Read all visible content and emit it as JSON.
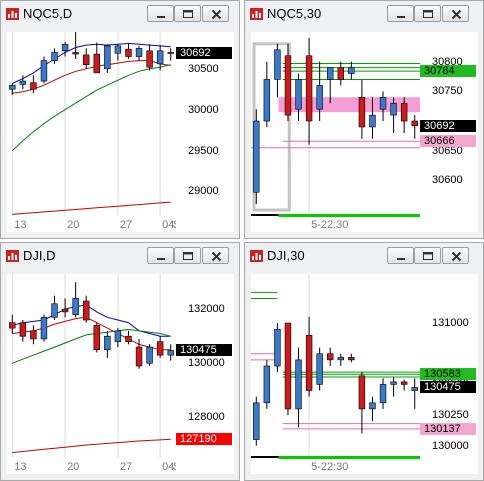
{
  "windows": [
    {
      "id": "nqc5-d",
      "title": "NQC5,D",
      "y_labels": [
        {
          "text": "30500",
          "value": 30500
        },
        {
          "text": "30000",
          "value": 30000
        },
        {
          "text": "29500",
          "value": 29500
        },
        {
          "text": "29000",
          "value": 29000
        }
      ],
      "price_boxes": [
        {
          "text": "30692",
          "value": 30692,
          "bg": "#000000",
          "fg": "#ffffff"
        }
      ],
      "x_labels": [
        {
          "text": "13",
          "bar": 0.5
        },
        {
          "text": "20",
          "bar": 5.5
        },
        {
          "text": "27",
          "bar": 10.5
        },
        {
          "text": "04",
          "bar": 14.5
        },
        {
          "text": "Sep",
          "bar": 15.5
        }
      ],
      "chart_data": {
        "type": "candlestick",
        "ylim": [
          28700,
          30950
        ],
        "bars": [
          {
            "o": 30250,
            "h": 30320,
            "l": 30180,
            "c": 30300
          },
          {
            "o": 30310,
            "h": 30420,
            "l": 30250,
            "c": 30350
          },
          {
            "o": 30330,
            "h": 30420,
            "l": 30200,
            "c": 30250
          },
          {
            "o": 30350,
            "h": 30650,
            "l": 30320,
            "c": 30600
          },
          {
            "o": 30600,
            "h": 30750,
            "l": 30560,
            "c": 30700
          },
          {
            "o": 30720,
            "h": 30830,
            "l": 30650,
            "c": 30800
          },
          {
            "o": 30700,
            "h": 30950,
            "l": 30620,
            "c": 30680
          },
          {
            "o": 30670,
            "h": 30750,
            "l": 30500,
            "c": 30550
          },
          {
            "o": 30680,
            "h": 30820,
            "l": 30450,
            "c": 30450
          },
          {
            "o": 30500,
            "h": 30800,
            "l": 30450,
            "c": 30780
          },
          {
            "o": 30690,
            "h": 30800,
            "l": 30600,
            "c": 30780
          },
          {
            "o": 30740,
            "h": 30810,
            "l": 30620,
            "c": 30650
          },
          {
            "o": 30650,
            "h": 30780,
            "l": 30600,
            "c": 30750
          },
          {
            "o": 30720,
            "h": 30800,
            "l": 30480,
            "c": 30520
          },
          {
            "o": 30560,
            "h": 30790,
            "l": 30480,
            "c": 30720
          },
          {
            "o": 30700,
            "h": 30750,
            "l": 30600,
            "c": 30692
          }
        ],
        "overlays": [
          {
            "color": "#0000cc",
            "points": [
              30320,
              30380,
              30450,
              30540,
              30620,
              30700,
              30760,
              30790,
              30800,
              30790,
              30800,
              30810,
              30800,
              30790,
              30780,
              30770
            ]
          },
          {
            "color": "#cc0000",
            "points": [
              30200,
              30220,
              30250,
              30300,
              30360,
              30420,
              30470,
              30500,
              30530,
              30550,
              30570,
              30590,
              30600,
              30600,
              30560,
              30540
            ]
          },
          {
            "color": "#008000",
            "points": [
              29500,
              29620,
              29730,
              29830,
              29920,
              30000,
              30080,
              30160,
              30240,
              30300,
              30360,
              30420,
              30470,
              30500,
              30520,
              30550
            ]
          },
          {
            "color": "#cc0000",
            "points": [
              28720,
              28730,
              28740,
              28750,
              28760,
              28770,
              28780,
              28790,
              28800,
              28810,
              28820,
              28830,
              28840,
              28850,
              28860,
              28870
            ]
          }
        ]
      }
    },
    {
      "id": "nqc5-30",
      "title": "NQC5,30",
      "y_labels": [
        {
          "text": "30800",
          "value": 30800
        },
        {
          "text": "30750",
          "value": 30750
        },
        {
          "text": "30650",
          "value": 30650
        },
        {
          "text": "30600",
          "value": 30600
        }
      ],
      "price_boxes": [
        {
          "text": "30784",
          "value": 30784,
          "bg": "#22bb22",
          "fg": "#000000"
        },
        {
          "text": "30692",
          "value": 30692,
          "bg": "#000000",
          "fg": "#ffffff"
        },
        {
          "text": "30666",
          "value": 30666,
          "bg": "#f4a6cf",
          "fg": "#000000"
        }
      ],
      "x_labels": [
        {
          "text": "5-22:30",
          "bar": 5.5
        }
      ],
      "chart_data": {
        "type": "candlestick",
        "ylim": [
          30540,
          30850
        ],
        "bars": [
          {
            "o": 30580,
            "h": 30720,
            "l": 30560,
            "c": 30700
          },
          {
            "o": 30700,
            "h": 30800,
            "l": 30690,
            "c": 30770
          },
          {
            "o": 30770,
            "h": 30830,
            "l": 30740,
            "c": 30820
          },
          {
            "o": 30810,
            "h": 30830,
            "l": 30700,
            "c": 30710
          },
          {
            "o": 30720,
            "h": 30780,
            "l": 30700,
            "c": 30770
          },
          {
            "o": 30810,
            "h": 30840,
            "l": 30660,
            "c": 30700
          },
          {
            "o": 30720,
            "h": 30800,
            "l": 30700,
            "c": 30760
          },
          {
            "o": 30770,
            "h": 30790,
            "l": 30730,
            "c": 30790
          },
          {
            "o": 30790,
            "h": 30800,
            "l": 30760,
            "c": 30770
          },
          {
            "o": 30780,
            "h": 30800,
            "l": 30770,
            "c": 30790
          },
          {
            "o": 30740,
            "h": 30770,
            "l": 30670,
            "c": 30690
          },
          {
            "o": 30690,
            "h": 30740,
            "l": 30670,
            "c": 30710
          },
          {
            "o": 30720,
            "h": 30750,
            "l": 30700,
            "c": 30740
          },
          {
            "o": 30710,
            "h": 30740,
            "l": 30680,
            "c": 30730
          },
          {
            "o": 30730,
            "h": 30740,
            "l": 30680,
            "c": 30700
          },
          {
            "o": 30700,
            "h": 30710,
            "l": 30670,
            "c": 30692
          }
        ],
        "hlines": [
          {
            "value": 30797,
            "color": "#00a000",
            "from": 3
          },
          {
            "value": 30790,
            "color": "#00a000",
            "from": 3
          },
          {
            "value": 30784,
            "color": "#00a000",
            "from": 3
          },
          {
            "value": 30770,
            "color": "#00a000",
            "from": 3
          },
          {
            "value": 30666,
            "color": "#e868b0",
            "from": 3
          },
          {
            "value": 30655,
            "color": "#e868b0",
            "from": 0
          }
        ],
        "highlight_band": {
          "from": 30720,
          "to": 30735,
          "color": "#f07cc8"
        }
      }
    },
    {
      "id": "dji-d",
      "title": "DJI,D",
      "y_labels": [
        {
          "text": "132000",
          "value": 132000
        },
        {
          "text": "130000",
          "value": 130000
        },
        {
          "text": "128000",
          "value": 128000
        }
      ],
      "price_boxes": [
        {
          "text": "130475",
          "value": 130475,
          "bg": "#000000",
          "fg": "#ffffff"
        },
        {
          "text": "127190",
          "value": 127190,
          "bg": "#ff0000",
          "fg": "#ffffff"
        }
      ],
      "x_labels": [
        {
          "text": "13",
          "bar": 0.5
        },
        {
          "text": "20",
          "bar": 5.5
        },
        {
          "text": "27",
          "bar": 10.5
        },
        {
          "text": "04",
          "bar": 14.5
        },
        {
          "text": "Sep",
          "bar": 15.5
        }
      ],
      "chart_data": {
        "type": "candlestick",
        "ylim": [
          126500,
          133300
        ],
        "bars": [
          {
            "o": 131500,
            "h": 131800,
            "l": 131100,
            "c": 131300
          },
          {
            "o": 131500,
            "h": 131600,
            "l": 130800,
            "c": 131000
          },
          {
            "o": 131200,
            "h": 131400,
            "l": 130700,
            "c": 130900
          },
          {
            "o": 130900,
            "h": 131800,
            "l": 130800,
            "c": 131700
          },
          {
            "o": 131700,
            "h": 132500,
            "l": 131600,
            "c": 132200
          },
          {
            "o": 132000,
            "h": 132400,
            "l": 131700,
            "c": 131900
          },
          {
            "o": 131800,
            "h": 133000,
            "l": 131700,
            "c": 132400
          },
          {
            "o": 132300,
            "h": 132500,
            "l": 131500,
            "c": 131600
          },
          {
            "o": 131400,
            "h": 131500,
            "l": 130400,
            "c": 130500
          },
          {
            "o": 130500,
            "h": 131200,
            "l": 130200,
            "c": 131000
          },
          {
            "o": 130800,
            "h": 131300,
            "l": 130600,
            "c": 131200
          },
          {
            "o": 131000,
            "h": 131200,
            "l": 130700,
            "c": 130800
          },
          {
            "o": 130600,
            "h": 130900,
            "l": 129800,
            "c": 129900
          },
          {
            "o": 130000,
            "h": 130700,
            "l": 129900,
            "c": 130600
          },
          {
            "o": 130800,
            "h": 131000,
            "l": 130200,
            "c": 130300
          },
          {
            "o": 130300,
            "h": 130700,
            "l": 130100,
            "c": 130475
          }
        ],
        "overlays": [
          {
            "color": "#0000cc",
            "points": [
              131400,
              131500,
              131550,
              131600,
              131800,
              132000,
              132100,
              132150,
              131900,
              131700,
              131600,
              131500,
              131200,
              131100,
              131000,
              131000
            ]
          },
          {
            "color": "#cc0000",
            "points": [
              131100,
              131150,
              131200,
              131300,
              131450,
              131550,
              131650,
              131700,
              131500,
              131300,
              131100,
              130900,
              130700,
              130600,
              130500,
              130500
            ]
          },
          {
            "color": "#008000",
            "points": [
              130000,
              130150,
              130300,
              130450,
              130600,
              130750,
              130900,
              131050,
              131100,
              131150,
              131200,
              131250,
              131200,
              131150,
              131100,
              131000
            ]
          },
          {
            "color": "#cc0000",
            "points": [
              126700,
              126740,
              126780,
              126820,
              126860,
              126900,
              126940,
              126980,
              127010,
              127040,
              127070,
              127100,
              127130,
              127150,
              127170,
              127190
            ]
          }
        ]
      }
    },
    {
      "id": "dji-30",
      "title": "DJI,30",
      "y_labels": [
        {
          "text": "131000",
          "value": 131000
        },
        {
          "text": "130500",
          "value": 130500
        },
        {
          "text": "130250",
          "value": 130250
        },
        {
          "text": "130000",
          "value": 130000
        }
      ],
      "price_boxes": [
        {
          "text": "130583",
          "value": 130583,
          "bg": "#22bb22",
          "fg": "#000000"
        },
        {
          "text": "130475",
          "value": 130475,
          "bg": "#000000",
          "fg": "#ffffff"
        },
        {
          "text": "130137",
          "value": 130137,
          "bg": "#f4a6cf",
          "fg": "#000000"
        }
      ],
      "x_labels": [
        {
          "text": "5-22:30",
          "bar": 5.5
        }
      ],
      "chart_data": {
        "type": "candlestick",
        "ylim": [
          129900,
          131400
        ],
        "bars": [
          {
            "o": 130050,
            "h": 130400,
            "l": 130000,
            "c": 130350
          },
          {
            "o": 130350,
            "h": 130700,
            "l": 130300,
            "c": 130650
          },
          {
            "o": 130650,
            "h": 131000,
            "l": 130600,
            "c": 130950
          },
          {
            "o": 131000,
            "h": 131000,
            "l": 130250,
            "c": 130300
          },
          {
            "o": 130300,
            "h": 130800,
            "l": 130150,
            "c": 130700
          },
          {
            "o": 130900,
            "h": 131050,
            "l": 130400,
            "c": 130450
          },
          {
            "o": 130500,
            "h": 130800,
            "l": 130450,
            "c": 130750
          },
          {
            "o": 130750,
            "h": 130800,
            "l": 130650,
            "c": 130700
          },
          {
            "o": 130700,
            "h": 130750,
            "l": 130650,
            "c": 130720
          },
          {
            "o": 130720,
            "h": 130750,
            "l": 130680,
            "c": 130700
          },
          {
            "o": 130570,
            "h": 130600,
            "l": 130100,
            "c": 130300
          },
          {
            "o": 130300,
            "h": 130400,
            "l": 130200,
            "c": 130350
          },
          {
            "o": 130350,
            "h": 130550,
            "l": 130300,
            "c": 130500
          },
          {
            "o": 130500,
            "h": 130560,
            "l": 130400,
            "c": 130520
          },
          {
            "o": 130520,
            "h": 130540,
            "l": 130450,
            "c": 130500
          },
          {
            "o": 130450,
            "h": 130550,
            "l": 130300,
            "c": 130475
          }
        ],
        "hlines": [
          {
            "value": 130600,
            "color": "#00a000",
            "from": 3
          },
          {
            "value": 130583,
            "color": "#00a000",
            "from": 3
          },
          {
            "value": 130560,
            "color": "#00a000",
            "from": 3
          },
          {
            "value": 130180,
            "color": "#e868b0",
            "from": 3
          },
          {
            "value": 130137,
            "color": "#e868b0",
            "from": 3
          },
          {
            "value": 131250,
            "color": "#00a000",
            "from": 0,
            "to": 2.5
          },
          {
            "value": 131200,
            "color": "#00a000",
            "from": 0,
            "to": 2.5
          },
          {
            "value": 130750,
            "color": "#e868b0",
            "from": 0,
            "to": 2.5
          },
          {
            "value": 130700,
            "color": "#e868b0",
            "from": 0,
            "to": 2.5
          }
        ]
      }
    }
  ],
  "colors": {
    "bull": "#3a78c9",
    "bear": "#cc1b1b",
    "grid": "#d8d8d8",
    "session_bar_green": "#00cc00"
  }
}
